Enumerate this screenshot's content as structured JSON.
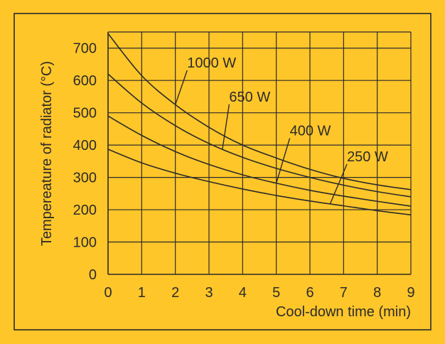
{
  "chart_data": {
    "type": "line",
    "title": "",
    "xlabel": "Cool-down time (min)",
    "ylabel": "Tempereature of radiator (°C)",
    "xlim": [
      0,
      9
    ],
    "ylim": [
      0,
      750
    ],
    "xticks": [
      0,
      1,
      2,
      3,
      4,
      5,
      6,
      7,
      8,
      9
    ],
    "yticks": [
      0,
      100,
      200,
      300,
      400,
      500,
      600,
      700
    ],
    "grid": true,
    "background": "#FFC629",
    "line_color": "#2b2b2b",
    "x": [
      0,
      1,
      2,
      3,
      4,
      5,
      6,
      7,
      8,
      9
    ],
    "series": [
      {
        "name": "1000 W",
        "values": [
          745,
          615,
          525,
          455,
          400,
          360,
          325,
          297,
          277,
          262
        ]
      },
      {
        "name": "650 W",
        "values": [
          620,
          530,
          460,
          405,
          362,
          328,
          300,
          276,
          256,
          240
        ]
      },
      {
        "name": "400 W",
        "values": [
          490,
          430,
          380,
          340,
          308,
          282,
          260,
          242,
          226,
          211
        ]
      },
      {
        "name": "250 W",
        "values": [
          387,
          345,
          313,
          287,
          264,
          244,
          227,
          212,
          197,
          184
        ]
      }
    ],
    "annotations": [
      {
        "series": 0,
        "text": "1000 W",
        "at_x": 2.0,
        "label_x": 2.35,
        "label_y": 640
      },
      {
        "series": 1,
        "text": "650 W",
        "at_x": 3.4,
        "label_x": 3.6,
        "label_y": 535
      },
      {
        "series": 2,
        "text": "400 W",
        "at_x": 5.0,
        "label_x": 5.4,
        "label_y": 430
      },
      {
        "series": 3,
        "text": "250 W",
        "at_x": 6.6,
        "label_x": 7.1,
        "label_y": 350
      }
    ]
  }
}
